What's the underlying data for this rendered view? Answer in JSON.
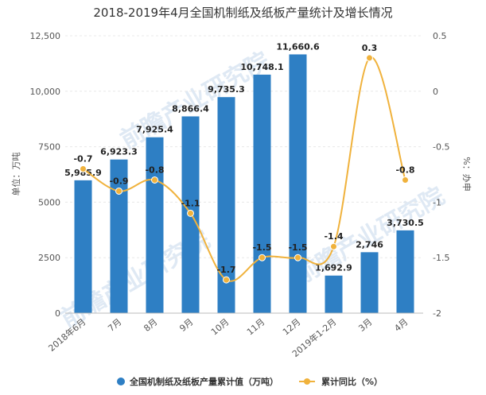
{
  "chart_data": {
    "type": "bar",
    "title": "2018-2019年4月全国机制纸及纸板产量统计及增长情况",
    "categories": [
      "2018年6月",
      "7月",
      "8月",
      "9月",
      "10月",
      "11月",
      "12月",
      "2019年1-2月",
      "3月",
      "4月"
    ],
    "series": [
      {
        "name": "全国机制纸及纸板产量累计值（万吨）",
        "type": "bar",
        "axis": "left",
        "color": "#2e7fc4",
        "values": [
          5985.9,
          6923.3,
          7925.4,
          8866.4,
          9735.3,
          10748.1,
          11660.6,
          1692.9,
          2746,
          3730.5
        ],
        "labels": [
          "5,985.9",
          "6,923.3",
          "7,925.4",
          "8,866.4",
          "9,735.3",
          "10,748.1",
          "11,660.6",
          "1,692.9",
          "2,746",
          "3,730.5"
        ]
      },
      {
        "name": "累计同比（%）",
        "type": "line",
        "axis": "right",
        "color": "#f0b23c",
        "values": [
          -0.7,
          -0.9,
          -0.8,
          -1.1,
          -1.7,
          -1.5,
          -1.5,
          -1.4,
          0.3,
          -0.8
        ],
        "labels": [
          "-0.7",
          "-0.9",
          "-0.8",
          "-1.1",
          "-1.7",
          "-1.5",
          "-1.5",
          "-1.4",
          "0.3",
          "-0.8"
        ]
      }
    ],
    "ylabel_left": "单位：万吨",
    "ylabel_right": "%：办申",
    "ylim_left": [
      0,
      12500
    ],
    "ylim_right": [
      -2,
      0.5
    ],
    "yticks_left": [
      "0",
      "2500",
      "5000",
      "7500",
      "10,000",
      "12,500"
    ],
    "yticks_right": [
      "-2",
      "-1.5",
      "-1",
      "-0.5",
      "0",
      "0.5"
    ],
    "legend_position": "bottom"
  },
  "watermark": "前瞻产业研究院"
}
